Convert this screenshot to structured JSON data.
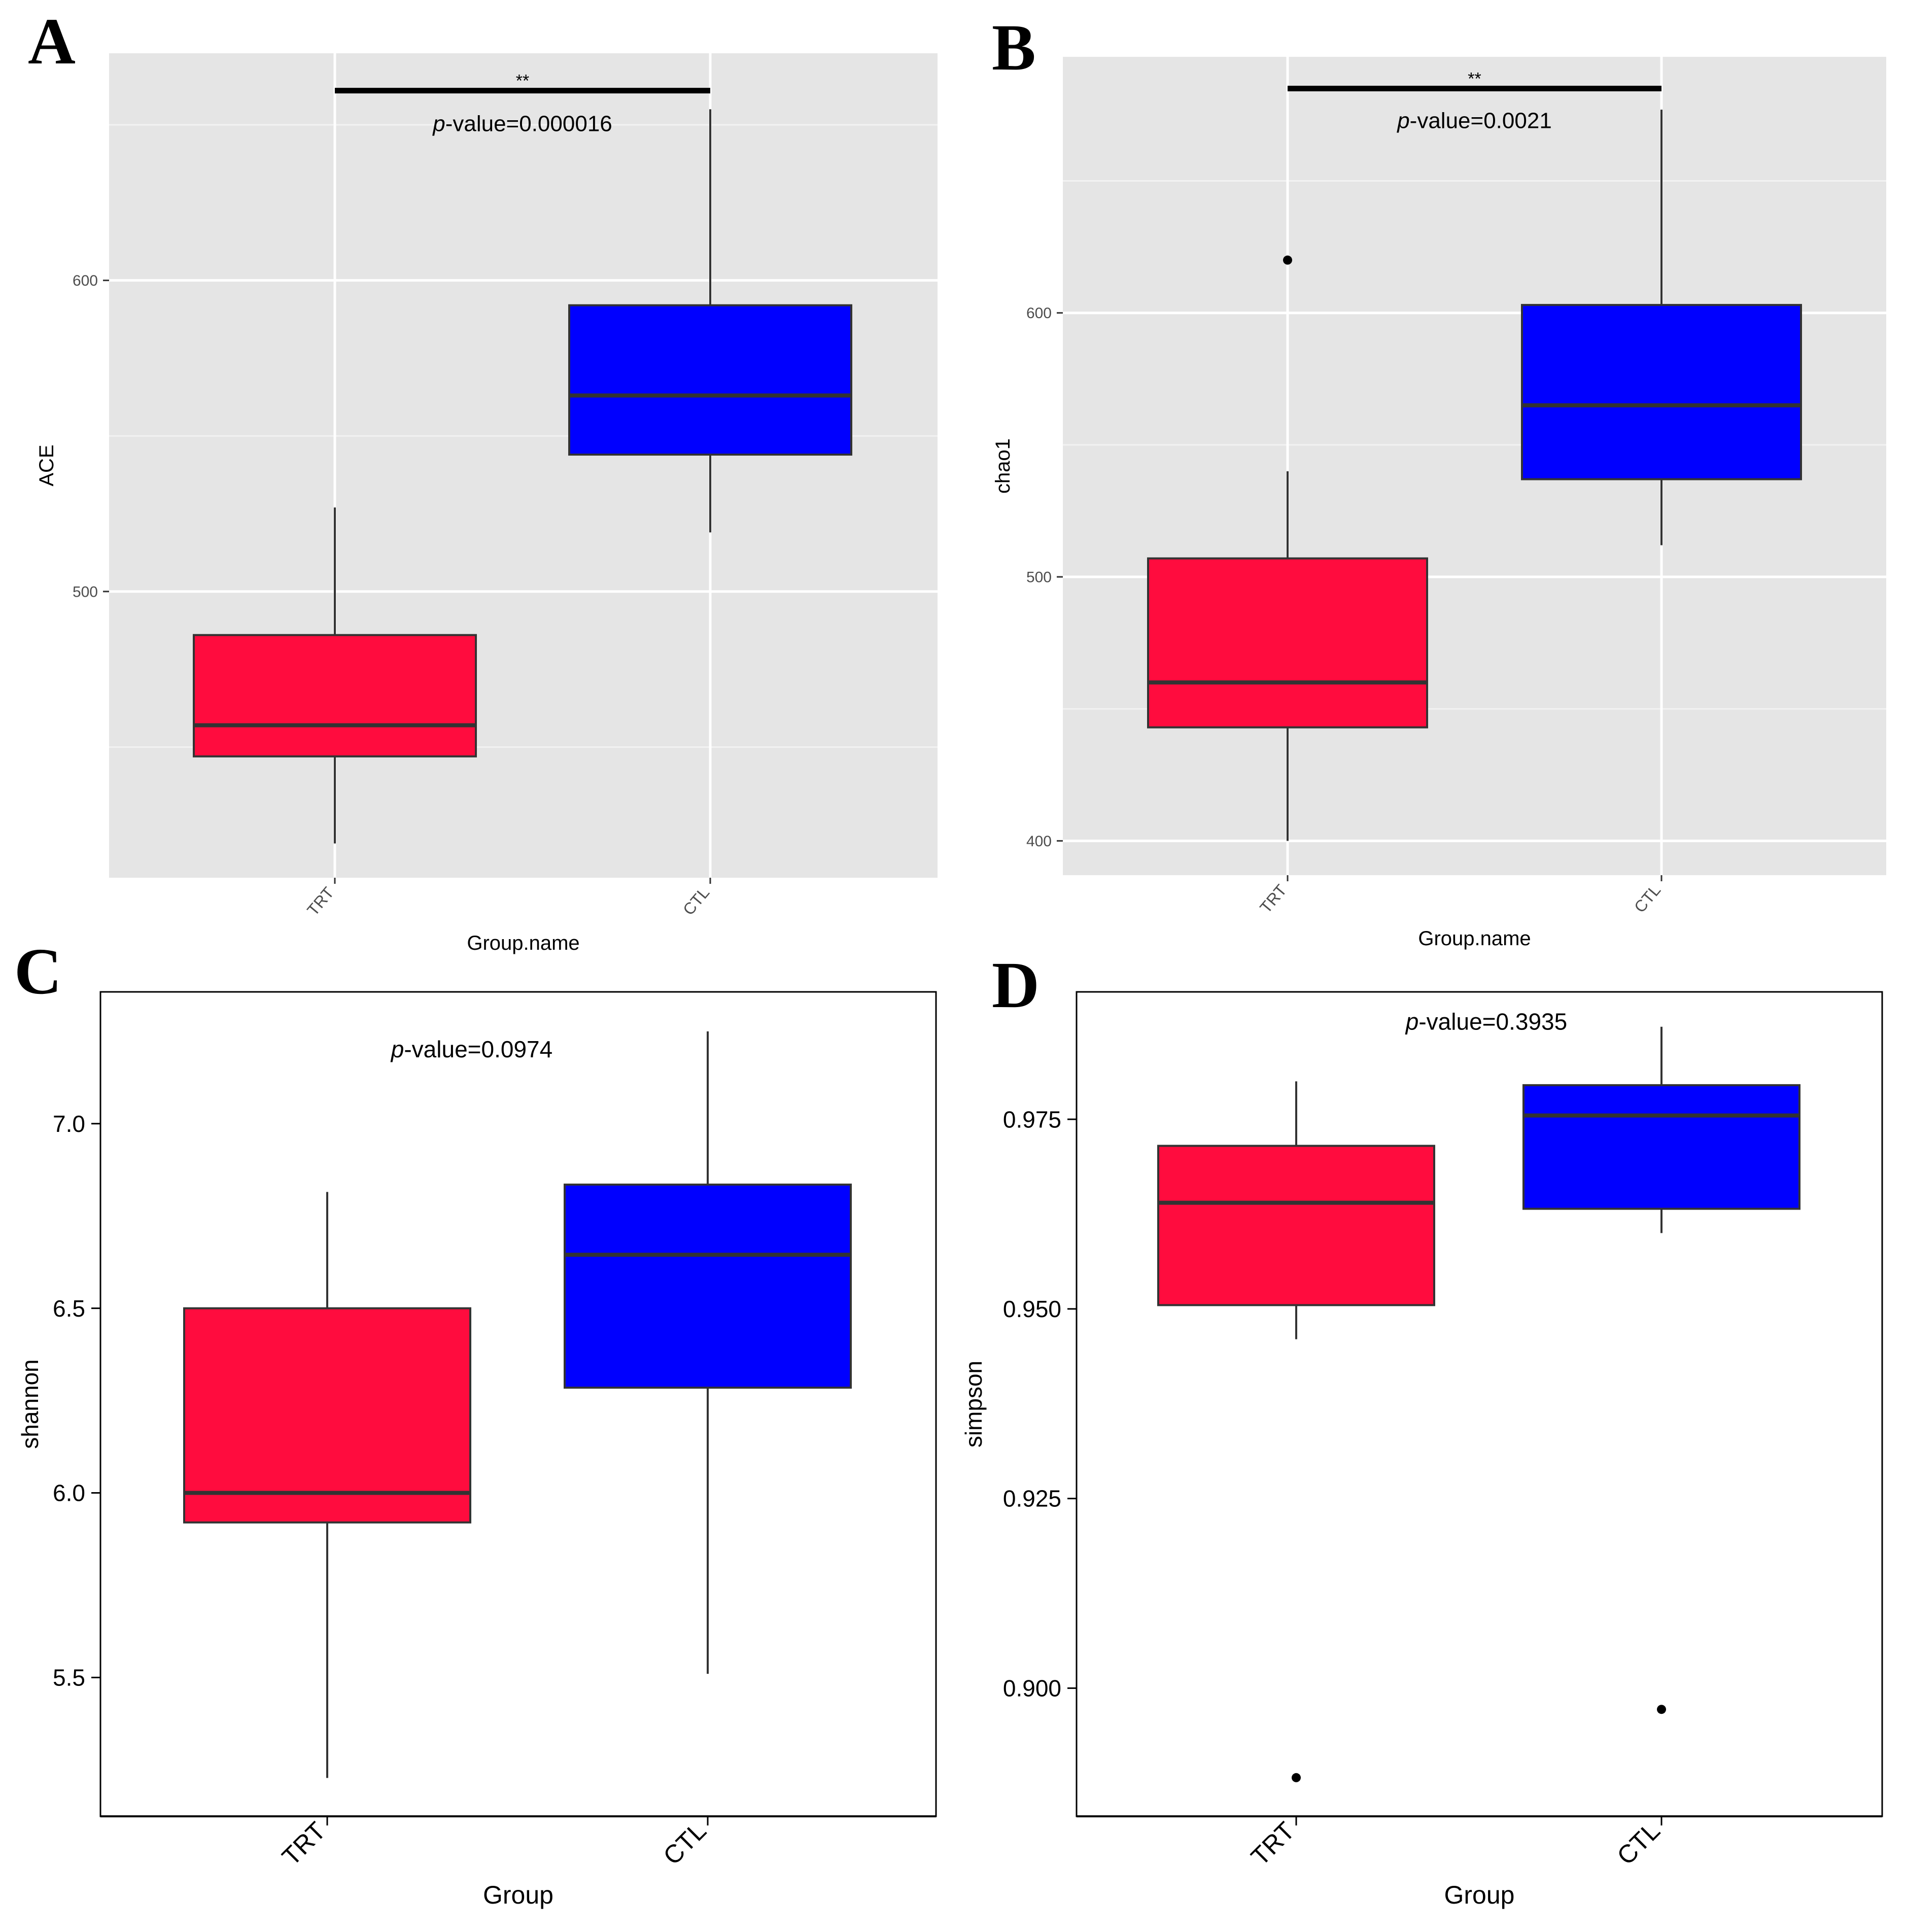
{
  "figure": {
    "panels": [
      "A",
      "B",
      "C",
      "D"
    ],
    "colors": {
      "trt": "#FF0C3E",
      "ctl": "#0000FF",
      "ggplot_bg": "#E5E5E5",
      "grid": "#FFFFFF",
      "box_line": "#333333",
      "axis_text": "#4D4D4D"
    }
  },
  "chart_data": [
    {
      "panel": "A",
      "type": "box",
      "style": "ggplot",
      "xlabel": "Group.name",
      "ylabel": "ACE",
      "categories": [
        "TRT",
        "CTL"
      ],
      "ylim": [
        408,
        673
      ],
      "yticks": [
        500,
        600
      ],
      "yticklabels": [
        "500",
        "600"
      ],
      "minor_grid": [
        450,
        550,
        650
      ],
      "boxes": [
        {
          "group": "TRT",
          "whisker_low": 419,
          "q1": 447,
          "median": 457,
          "q3": 486,
          "whisker_high": 527,
          "outliers": []
        },
        {
          "group": "CTL",
          "whisker_low": 519,
          "q1": 544,
          "median": 563,
          "q3": 592,
          "whisker_high": 655,
          "outliers": []
        }
      ],
      "significance": {
        "stars": "**",
        "p_prefix": "p",
        "p_text": "-value=0.000016",
        "bar_y": 661,
        "text_y": 648
      }
    },
    {
      "panel": "B",
      "type": "box",
      "style": "ggplot",
      "xlabel": "Group.name",
      "ylabel": "chao1",
      "categories": [
        "TRT",
        "CTL"
      ],
      "ylim": [
        387,
        697
      ],
      "yticks": [
        400,
        500,
        600
      ],
      "yticklabels": [
        "400",
        "500",
        "600"
      ],
      "minor_grid": [
        450,
        550,
        650
      ],
      "boxes": [
        {
          "group": "TRT",
          "whisker_low": 400,
          "q1": 443,
          "median": 460,
          "q3": 507,
          "whisker_high": 540,
          "outliers": [
            620
          ]
        },
        {
          "group": "CTL",
          "whisker_low": 512,
          "q1": 537,
          "median": 565,
          "q3": 603,
          "whisker_high": 677,
          "outliers": []
        }
      ],
      "significance": {
        "stars": "**",
        "p_prefix": "p",
        "p_text": "-value=0.0021",
        "bar_y": 685,
        "text_y": 670
      }
    },
    {
      "panel": "C",
      "type": "box",
      "style": "classic",
      "xlabel": "Group",
      "ylabel": "shannon",
      "categories": [
        "TRT",
        "CTL"
      ],
      "ylim": [
        5.124,
        7.357
      ],
      "yticks": [
        5.5,
        6.0,
        6.5,
        7.0
      ],
      "yticklabels": [
        "5.5",
        "6.0",
        "6.5",
        "7.0"
      ],
      "boxes": [
        {
          "group": "TRT",
          "whisker_low": 5.228,
          "q1": 5.92,
          "median": 6.0,
          "q3": 6.5,
          "whisker_high": 6.815,
          "outliers": []
        },
        {
          "group": "CTL",
          "whisker_low": 5.51,
          "q1": 6.285,
          "median": 6.645,
          "q3": 6.835,
          "whisker_high": 7.25,
          "outliers": []
        }
      ],
      "significance": {
        "stars": "",
        "p_prefix": "p",
        "p_text": "-value=0.0974",
        "text_y": 7.18
      }
    },
    {
      "panel": "D",
      "type": "box",
      "style": "classic",
      "xlabel": "Group",
      "ylabel": "simpson",
      "categories": [
        "TRT",
        "CTL"
      ],
      "ylim": [
        0.8831,
        0.9918
      ],
      "yticks": [
        0.9,
        0.925,
        0.95,
        0.975
      ],
      "yticklabels": [
        "0.900",
        "0.925",
        "0.950",
        "0.975"
      ],
      "boxes": [
        {
          "group": "TRT",
          "whisker_low": 0.946,
          "q1": 0.9505,
          "median": 0.964,
          "q3": 0.9715,
          "whisker_high": 0.98,
          "outliers": [
            0.8882
          ]
        },
        {
          "group": "CTL",
          "whisker_low": 0.96,
          "q1": 0.9632,
          "median": 0.9755,
          "q3": 0.9795,
          "whisker_high": 0.9872,
          "outliers": [
            0.8972
          ]
        }
      ],
      "significance": {
        "stars": "",
        "p_prefix": "p",
        "p_text": "-value=0.3935",
        "text_y": 0.9868
      }
    }
  ]
}
